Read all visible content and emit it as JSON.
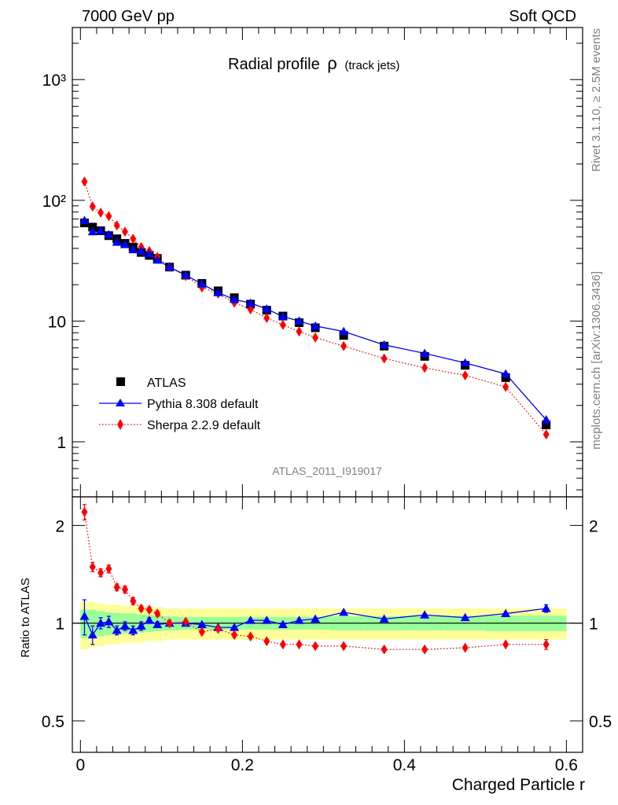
{
  "header": {
    "energy_label": "7000 GeV pp",
    "process_label": "Soft QCD"
  },
  "side_notes": {
    "rivet_note": "Rivet 3.1.10, ≥ 2.5M events",
    "mcplots_note": "mcplots.cern.ch [arXiv:1306.3436]"
  },
  "chart_data": [
    {
      "type": "scatter",
      "panel": "main",
      "title_main": "Radial profile",
      "title_symbol": "ρ",
      "title_suffix": "(track jets)",
      "analysis_label": "ATLAS_2011_I919017",
      "y_scale": "log",
      "ylim": [
        0.35,
        2700
      ],
      "xlim": [
        -0.01,
        0.62
      ],
      "y_tick_labels": [
        "10³",
        "10²",
        "10",
        "1"
      ],
      "legend_position": "bottom-left",
      "x": [
        0.005,
        0.015,
        0.025,
        0.035,
        0.045,
        0.055,
        0.065,
        0.075,
        0.085,
        0.095,
        0.11,
        0.13,
        0.15,
        0.17,
        0.19,
        0.21,
        0.23,
        0.25,
        0.27,
        0.29,
        0.325,
        0.375,
        0.425,
        0.475,
        0.525,
        0.575
      ],
      "series": [
        {
          "name": "ATLAS",
          "color": "#000000",
          "marker": "square",
          "values": [
            65,
            60,
            56,
            51,
            48,
            44,
            41,
            37,
            35,
            33,
            28,
            24,
            20.5,
            17.8,
            15.6,
            13.8,
            12.3,
            11.0,
            9.7,
            8.8,
            7.6,
            6.2,
            5.1,
            4.3,
            3.4,
            1.38
          ]
        },
        {
          "name": "Pythia 8.308 default",
          "color": "#0000ff",
          "marker": "triangle",
          "line": "solid",
          "values": [
            68,
            55,
            56,
            52,
            45,
            43,
            39,
            38,
            36,
            32,
            28,
            24,
            20.3,
            17.2,
            15.1,
            14.1,
            12.6,
            10.9,
            10.0,
            9.1,
            8.2,
            6.35,
            5.4,
            4.5,
            3.65,
            1.52
          ]
        },
        {
          "name": "Sherpa 2.2.9 default",
          "color": "#ff0000",
          "marker": "diamond",
          "line": "dotted",
          "values": [
            143,
            89,
            79,
            74,
            62,
            55,
            48,
            41,
            38,
            34,
            28,
            23.6,
            19.0,
            16.9,
            14.2,
            12.5,
            10.6,
            9.3,
            8.2,
            7.3,
            6.2,
            4.9,
            4.1,
            3.55,
            2.85,
            1.15
          ]
        }
      ]
    },
    {
      "type": "scatter",
      "panel": "ratio",
      "ylabel": "Ratio to ATLAS",
      "xlabel": "Charged Particle r",
      "y_scale": "log",
      "ylim": [
        0.4,
        2.45
      ],
      "xlim": [
        -0.01,
        0.62
      ],
      "y_tick_labels": [
        "2",
        "1",
        "0.5"
      ],
      "x_tick_labels": [
        "0",
        "0.2",
        "0.4",
        "0.6"
      ],
      "x": [
        0.005,
        0.015,
        0.025,
        0.035,
        0.045,
        0.055,
        0.065,
        0.075,
        0.085,
        0.095,
        0.11,
        0.13,
        0.15,
        0.17,
        0.19,
        0.21,
        0.23,
        0.25,
        0.27,
        0.29,
        0.325,
        0.375,
        0.425,
        0.475,
        0.525,
        0.575
      ],
      "uncertainty_bands": {
        "green_color": "#99ff99",
        "yellow_color": "#ffff99",
        "green_half_width": [
          0.1,
          0.1,
          0.09,
          0.08,
          0.075,
          0.07,
          0.07,
          0.065,
          0.06,
          0.055,
          0.05,
          0.045,
          0.045,
          0.045,
          0.045,
          0.045,
          0.045,
          0.045,
          0.045,
          0.045,
          0.05,
          0.05,
          0.05,
          0.05,
          0.055,
          0.055
        ],
        "yellow_half_width": [
          0.17,
          0.16,
          0.15,
          0.14,
          0.14,
          0.13,
          0.13,
          0.13,
          0.12,
          0.12,
          0.11,
          0.11,
          0.11,
          0.11,
          0.11,
          0.11,
          0.11,
          0.11,
          0.11,
          0.11,
          0.11,
          0.11,
          0.11,
          0.11,
          0.11,
          0.11
        ]
      },
      "series": [
        {
          "name": "Pythia 8.308 default",
          "color": "#0000ff",
          "marker": "triangle",
          "line": "solid",
          "values": [
            1.05,
            0.92,
            1.0,
            1.01,
            0.95,
            0.98,
            0.95,
            0.98,
            1.02,
            0.99,
            1.0,
            1.0,
            0.99,
            0.97,
            0.97,
            1.02,
            1.02,
            0.99,
            1.02,
            1.03,
            1.08,
            1.03,
            1.06,
            1.04,
            1.07,
            1.11
          ],
          "errors": [
            0.13,
            0.06,
            0.04,
            0.04,
            0.03,
            0.03,
            0.03,
            0.03,
            0.02,
            0.02,
            0.02,
            0.01,
            0.01,
            0.01,
            0.01,
            0.01,
            0.01,
            0.01,
            0.01,
            0.01,
            0.01,
            0.01,
            0.01,
            0.01,
            0.01,
            0.03
          ]
        },
        {
          "name": "Sherpa 2.2.9 default",
          "color": "#ff0000",
          "marker": "diamond",
          "line": "dotted",
          "values": [
            2.2,
            1.49,
            1.43,
            1.47,
            1.29,
            1.27,
            1.17,
            1.11,
            1.1,
            1.07,
            1.0,
            1.01,
            0.94,
            0.96,
            0.92,
            0.91,
            0.88,
            0.86,
            0.86,
            0.85,
            0.85,
            0.83,
            0.83,
            0.84,
            0.86,
            0.86
          ],
          "errors": [
            0.12,
            0.05,
            0.04,
            0.04,
            0.03,
            0.03,
            0.03,
            0.02,
            0.02,
            0.02,
            0.02,
            0.01,
            0.01,
            0.01,
            0.01,
            0.01,
            0.01,
            0.01,
            0.01,
            0.01,
            0.01,
            0.01,
            0.01,
            0.01,
            0.01,
            0.03
          ]
        }
      ]
    }
  ]
}
